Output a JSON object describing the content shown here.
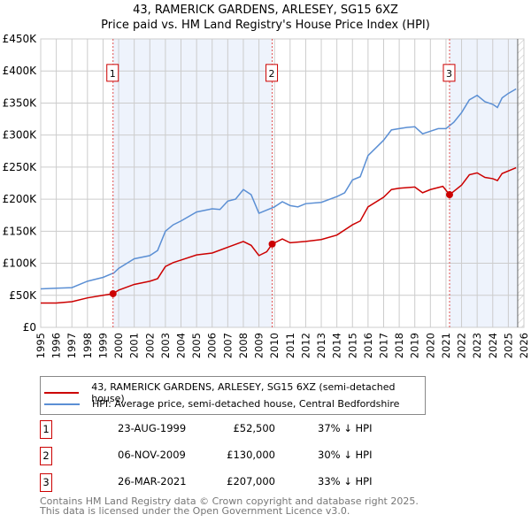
{
  "chart_data": {
    "type": "line",
    "title": "43, RAMERICK GARDENS, ARLESEY, SG15 6XZ",
    "subtitle": "Price paid vs. HM Land Registry's House Price Index (HPI)",
    "xlim": [
      1995,
      2026
    ],
    "ylim": [
      0,
      450000
    ],
    "y_ticks": [
      {
        "v": 0,
        "label": "£0"
      },
      {
        "v": 50000,
        "label": "£50K"
      },
      {
        "v": 100000,
        "label": "£100K"
      },
      {
        "v": 150000,
        "label": "£150K"
      },
      {
        "v": 200000,
        "label": "£200K"
      },
      {
        "v": 250000,
        "label": "£250K"
      },
      {
        "v": 300000,
        "label": "£300K"
      },
      {
        "v": 350000,
        "label": "£350K"
      },
      {
        "v": 400000,
        "label": "£400K"
      },
      {
        "v": 450000,
        "label": "£450K"
      }
    ],
    "x_ticks": [
      "1995",
      "1996",
      "1997",
      "1998",
      "1999",
      "2000",
      "2001",
      "2002",
      "2003",
      "2004",
      "2005",
      "2006",
      "2007",
      "2008",
      "2009",
      "2010",
      "2011",
      "2012",
      "2013",
      "2014",
      "2015",
      "2016",
      "2017",
      "2018",
      "2019",
      "2020",
      "2021",
      "2022",
      "2023",
      "2024",
      "2025",
      "2026"
    ],
    "grid": true,
    "series": [
      {
        "name": "43, RAMERICK GARDENS, ARLESEY, SG15 6XZ (semi-detached house)",
        "color": "#cc0000",
        "x": [
          1995,
          1996,
          1997,
          1998,
          1999,
          1999.64,
          2000,
          2001,
          2002,
          2002.5,
          2003,
          2003.5,
          2004,
          2005,
          2006,
          2007,
          2008,
          2008.5,
          2009,
          2009.5,
          2009.85,
          2010.5,
          2011,
          2012,
          2013,
          2014,
          2015,
          2015.5,
          2016,
          2017,
          2017.5,
          2018,
          2019,
          2019.5,
          2020,
          2020.8,
          2021.23,
          2022,
          2022.5,
          2023,
          2023.5,
          2024,
          2024.3,
          2024.6,
          2025.5
        ],
        "y": [
          38000,
          38000,
          40000,
          46000,
          50000,
          52500,
          58000,
          67000,
          72000,
          76000,
          95000,
          101000,
          105000,
          113000,
          116000,
          125000,
          134000,
          128000,
          112000,
          118000,
          130000,
          138000,
          132000,
          134000,
          137000,
          144000,
          160000,
          166000,
          188000,
          203000,
          215000,
          217000,
          219000,
          210000,
          215000,
          220000,
          207000,
          222000,
          238000,
          241000,
          234000,
          232000,
          229000,
          240000,
          249000
        ]
      },
      {
        "name": "HPI: Average price, semi-detached house, Central Bedfordshire",
        "color": "#5b8fd4",
        "x": [
          1995,
          1996,
          1997,
          1998,
          1999,
          1999.7,
          2000,
          2001,
          2002,
          2002.5,
          2003,
          2003.5,
          2004,
          2005,
          2006,
          2006.5,
          2007,
          2007.5,
          2008,
          2008.5,
          2009,
          2009.5,
          2010,
          2010.5,
          2011,
          2011.5,
          2012,
          2013,
          2014,
          2014.5,
          2015,
          2015.5,
          2016,
          2016.5,
          2017,
          2017.5,
          2018,
          2018.5,
          2019,
          2019.5,
          2020,
          2020.5,
          2021,
          2021.5,
          2022,
          2022.5,
          2023,
          2023.5,
          2024,
          2024.3,
          2024.6,
          2025,
          2025.5
        ],
        "y": [
          60000,
          61000,
          62000,
          72000,
          78000,
          85000,
          92000,
          107000,
          112000,
          120000,
          150000,
          160000,
          166000,
          180000,
          185000,
          184000,
          197000,
          200000,
          215000,
          207000,
          178000,
          183000,
          188000,
          196000,
          190000,
          188000,
          193000,
          195000,
          204000,
          210000,
          230000,
          235000,
          268000,
          280000,
          292000,
          308000,
          310000,
          312000,
          313000,
          302000,
          306000,
          310000,
          310000,
          320000,
          335000,
          355000,
          362000,
          352000,
          348000,
          343000,
          358000,
          365000,
          372000
        ]
      }
    ],
    "sales": [
      {
        "n": "1",
        "x": 1999.64,
        "y": 52500
      },
      {
        "n": "2",
        "x": 2009.85,
        "y": 130000
      },
      {
        "n": "3",
        "x": 2021.23,
        "y": 207000
      }
    ],
    "shaded_ranges": [
      [
        1999.64,
        2009.85
      ],
      [
        2021.23,
        2025.6
      ]
    ],
    "hatched_from": 2025.6
  },
  "legend": {
    "price": "43, RAMERICK GARDENS, ARLESEY, SG15 6XZ (semi-detached house)",
    "hpi": "HPI: Average price, semi-detached house, Central Bedfordshire"
  },
  "table": [
    {
      "n": "1",
      "date": "23-AUG-1999",
      "price": "£52,500",
      "hpi": "37% ↓ HPI"
    },
    {
      "n": "2",
      "date": "06-NOV-2009",
      "price": "£130,000",
      "hpi": "30% ↓ HPI"
    },
    {
      "n": "3",
      "date": "26-MAR-2021",
      "price": "£207,000",
      "hpi": "33% ↓ HPI"
    }
  ],
  "footer": {
    "line1": "Contains HM Land Registry data © Crown copyright and database right 2025.",
    "line2": "This data is licensed under the Open Government Licence v3.0."
  }
}
